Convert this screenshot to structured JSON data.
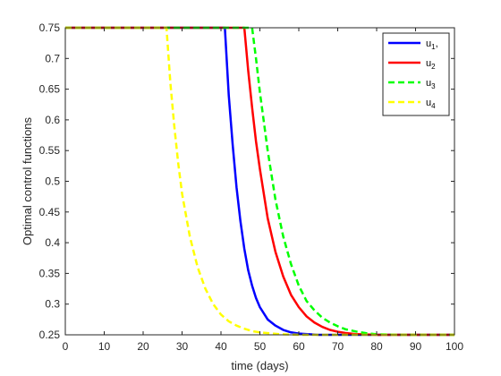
{
  "chart_data": {
    "type": "line",
    "xlabel": "time (days)",
    "ylabel": "Optimal control functions",
    "xlim": [
      0,
      100
    ],
    "ylim": [
      0.25,
      0.75
    ],
    "x_ticks": [
      0,
      10,
      20,
      30,
      40,
      50,
      60,
      70,
      80,
      90,
      100
    ],
    "y_ticks": [
      0.25,
      0.3,
      0.35,
      0.4,
      0.45,
      0.5,
      0.55,
      0.6,
      0.65,
      0.7,
      0.75
    ],
    "x_tick_labels": [
      "0",
      "10",
      "20",
      "30",
      "40",
      "50",
      "60",
      "70",
      "80",
      "90",
      "100"
    ],
    "y_tick_labels": [
      "0.25",
      "0.3",
      "0.35",
      "0.4",
      "0.45",
      "0.5",
      "0.55",
      "0.6",
      "0.65",
      "0.7",
      "0.75"
    ],
    "grid": false,
    "legend_position": "top-right",
    "series": [
      {
        "name": "u1,",
        "legend": {
          "base": "u",
          "sub": "1",
          "suffix": ","
        },
        "color": "#0000FF",
        "style": "solid",
        "x": [
          0,
          41,
          42,
          43,
          44,
          45,
          46,
          47,
          48,
          49,
          50,
          52,
          54,
          56,
          58,
          60,
          65,
          70,
          75,
          80,
          85,
          90,
          95,
          100
        ],
        "y": [
          0.75,
          0.75,
          0.64,
          0.56,
          0.49,
          0.435,
          0.39,
          0.355,
          0.33,
          0.31,
          0.295,
          0.275,
          0.265,
          0.258,
          0.254,
          0.252,
          0.25,
          0.25,
          0.25,
          0.25,
          0.25,
          0.25,
          0.25,
          0.25
        ]
      },
      {
        "name": "u2",
        "legend": {
          "base": "u",
          "sub": "2",
          "suffix": ""
        },
        "color": "#FF0000",
        "style": "solid",
        "x": [
          0,
          46,
          47,
          48,
          49,
          50,
          52,
          54,
          56,
          58,
          60,
          62,
          64,
          66,
          68,
          70,
          72,
          75,
          80,
          85,
          90,
          95,
          100
        ],
        "y": [
          0.75,
          0.75,
          0.68,
          0.62,
          0.565,
          0.52,
          0.44,
          0.385,
          0.345,
          0.315,
          0.295,
          0.28,
          0.27,
          0.263,
          0.258,
          0.255,
          0.253,
          0.251,
          0.25,
          0.25,
          0.25,
          0.25,
          0.25
        ]
      },
      {
        "name": "u3",
        "legend": {
          "base": "u",
          "sub": "3",
          "suffix": ""
        },
        "color": "#00FF00",
        "style": "dashed",
        "x": [
          0,
          48,
          49,
          50,
          52,
          54,
          56,
          58,
          60,
          62,
          64,
          66,
          68,
          70,
          72,
          75,
          78,
          80,
          85,
          90,
          95,
          100
        ],
        "y": [
          0.75,
          0.75,
          0.7,
          0.645,
          0.55,
          0.47,
          0.41,
          0.365,
          0.33,
          0.305,
          0.29,
          0.278,
          0.27,
          0.264,
          0.259,
          0.255,
          0.252,
          0.251,
          0.25,
          0.25,
          0.25,
          0.25
        ]
      },
      {
        "name": "u4",
        "legend": {
          "base": "u",
          "sub": "4",
          "suffix": ""
        },
        "color": "#FFFF00",
        "style": "dashed",
        "x": [
          0,
          26,
          27,
          28,
          29,
          30,
          32,
          34,
          36,
          38,
          40,
          42,
          44,
          46,
          48,
          50,
          55,
          60,
          70,
          80,
          90,
          100
        ],
        "y": [
          0.75,
          0.75,
          0.66,
          0.59,
          0.53,
          0.48,
          0.41,
          0.36,
          0.325,
          0.3,
          0.283,
          0.272,
          0.265,
          0.26,
          0.256,
          0.254,
          0.251,
          0.25,
          0.25,
          0.25,
          0.25,
          0.25
        ]
      }
    ]
  }
}
